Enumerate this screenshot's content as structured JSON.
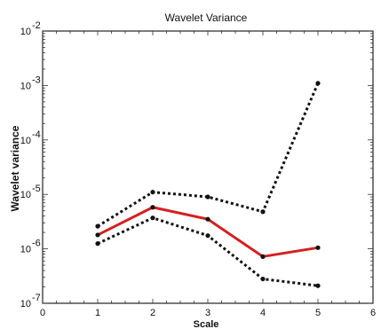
{
  "chart_data": {
    "type": "line",
    "title": "Wavelet Variance",
    "xlabel": "Scale",
    "ylabel": "Wavelet variance",
    "x_ticks": [
      "0",
      "1",
      "2",
      "3",
      "4",
      "5",
      "6"
    ],
    "y_ticks": [
      {
        "base": "10",
        "exp": "-7"
      },
      {
        "base": "10",
        "exp": "-6"
      },
      {
        "base": "10",
        "exp": "-5"
      },
      {
        "base": "10",
        "exp": "-4"
      },
      {
        "base": "10",
        "exp": "-3"
      },
      {
        "base": "10",
        "exp": "-2"
      }
    ],
    "xlim": [
      0,
      6
    ],
    "ylim": [
      1e-07,
      0.01
    ],
    "yscale": "log",
    "grid": false,
    "x": [
      1,
      2,
      3,
      4,
      5
    ],
    "series": [
      {
        "role": "upper-bound",
        "color": "#111111",
        "style": "dotted",
        "values": [
          2.6e-06,
          1.1e-05,
          9e-06,
          4.8e-06,
          0.0011
        ]
      },
      {
        "role": "estimate",
        "color": "#d42020",
        "style": "solid",
        "values": [
          1.8e-06,
          5.8e-06,
          3.5e-06,
          7.2e-07,
          1.05e-06
        ]
      },
      {
        "role": "lower-bound",
        "color": "#111111",
        "style": "dotted",
        "values": [
          1.25e-06,
          3.7e-06,
          1.75e-06,
          2.8e-07,
          2.1e-07
        ]
      }
    ]
  }
}
